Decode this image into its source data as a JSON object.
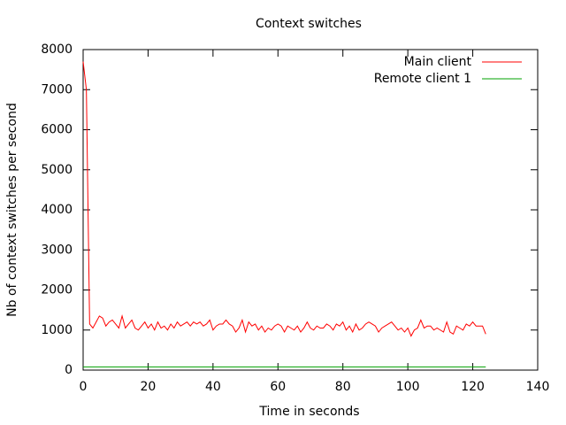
{
  "chart_data": {
    "type": "line",
    "title": "Context switches",
    "x_label": "Time in seconds",
    "y_label": "Nb of context switches per second",
    "xlim": [
      0,
      140
    ],
    "xticks": [
      0,
      20,
      40,
      60,
      80,
      100,
      120,
      140
    ],
    "ylim": [
      0,
      8000
    ],
    "yticks": [
      0,
      1000,
      2000,
      3000,
      4000,
      5000,
      6000,
      7000,
      8000
    ],
    "legend": "top-right",
    "series": [
      {
        "name": "Main client",
        "color": "#ff0000",
        "x": [
          0,
          1,
          2,
          3,
          4,
          5,
          6,
          7,
          8,
          9,
          10,
          11,
          12,
          13,
          14,
          15,
          16,
          17,
          18,
          19,
          20,
          21,
          22,
          23,
          24,
          25,
          26,
          27,
          28,
          29,
          30,
          31,
          32,
          33,
          34,
          35,
          36,
          37,
          38,
          39,
          40,
          41,
          42,
          43,
          44,
          45,
          46,
          47,
          48,
          49,
          50,
          51,
          52,
          53,
          54,
          55,
          56,
          57,
          58,
          59,
          60,
          61,
          62,
          63,
          64,
          65,
          66,
          67,
          68,
          69,
          70,
          71,
          72,
          73,
          74,
          75,
          76,
          77,
          78,
          79,
          80,
          81,
          82,
          83,
          84,
          85,
          86,
          87,
          88,
          89,
          90,
          91,
          92,
          93,
          94,
          95,
          96,
          97,
          98,
          99,
          100,
          101,
          102,
          103,
          104,
          105,
          106,
          107,
          108,
          109,
          110,
          111,
          112,
          113,
          114,
          115,
          116,
          117,
          118,
          119,
          120,
          121,
          122,
          123,
          124
        ],
        "values": [
          7700,
          7000,
          1150,
          1050,
          1200,
          1350,
          1300,
          1100,
          1200,
          1250,
          1150,
          1050,
          1350,
          1050,
          1150,
          1250,
          1050,
          1000,
          1100,
          1200,
          1050,
          1150,
          1000,
          1200,
          1050,
          1100,
          1000,
          1150,
          1050,
          1200,
          1100,
          1150,
          1200,
          1100,
          1200,
          1150,
          1200,
          1100,
          1150,
          1250,
          1000,
          1100,
          1150,
          1150,
          1250,
          1150,
          1100,
          950,
          1050,
          1250,
          950,
          1200,
          1100,
          1150,
          1000,
          1100,
          950,
          1050,
          1000,
          1100,
          1150,
          1100,
          950,
          1100,
          1050,
          1000,
          1100,
          950,
          1050,
          1200,
          1050,
          1000,
          1100,
          1050,
          1050,
          1150,
          1100,
          1000,
          1150,
          1100,
          1200,
          1000,
          1100,
          950,
          1150,
          1000,
          1050,
          1150,
          1200,
          1150,
          1100,
          950,
          1050,
          1100,
          1150,
          1200,
          1100,
          1000,
          1050,
          950,
          1050,
          850,
          1000,
          1050,
          1250,
          1050,
          1100,
          1100,
          1000,
          1050,
          1000,
          950,
          1200,
          950,
          900,
          1100,
          1050,
          1000,
          1150,
          1100,
          1200,
          1100,
          1100,
          1100,
          900
        ]
      },
      {
        "name": "Remote client 1",
        "color": "#00a000",
        "x": [
          0,
          124
        ],
        "values": [
          80,
          80
        ]
      }
    ]
  }
}
